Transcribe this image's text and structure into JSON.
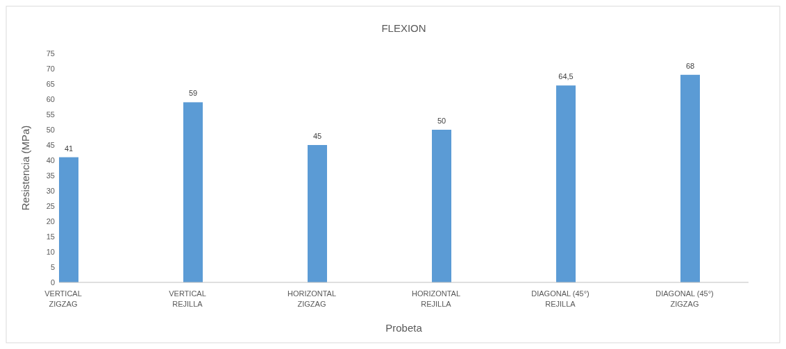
{
  "chart_data": {
    "type": "bar",
    "title": "FLEXION",
    "xlabel": "Probeta",
    "ylabel": "Resistencia (MPa)",
    "categories": [
      "VERTICAL ZIGZAG",
      "VERTICAL REJILLA",
      "HORIZONTAL ZIGZAG",
      "HORIZONTAL REJILLA",
      "DIAGONAL (45°) REJILLA",
      "DIAGONAL (45°) ZIGZAG"
    ],
    "values": [
      41,
      59,
      45,
      50,
      64.5,
      68
    ],
    "value_labels": [
      "41",
      "59",
      "45",
      "50",
      "64,5",
      "68"
    ],
    "color": "#5b9bd5",
    "ylim": [
      0,
      75
    ],
    "yticks": [
      0,
      5,
      10,
      15,
      20,
      25,
      30,
      35,
      40,
      45,
      50,
      55,
      60,
      65,
      70,
      75
    ],
    "grid": false
  }
}
